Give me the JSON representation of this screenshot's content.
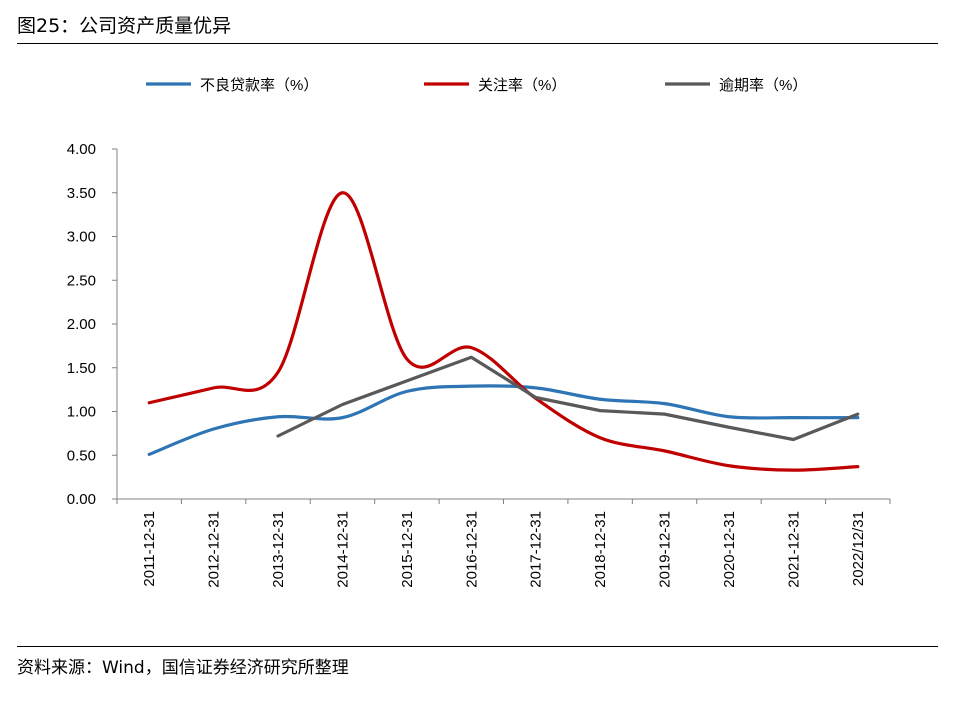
{
  "header": {
    "title": "图25：公司资产质量优异"
  },
  "footer": {
    "source": "资料来源：Wind，国信证券经济研究所整理"
  },
  "chart_data": {
    "type": "line",
    "title": "图25：公司资产质量优异",
    "xlabel": "",
    "ylabel": "",
    "categories": [
      "2011-12-31",
      "2012-12-31",
      "2013-12-31",
      "2014-12-31",
      "2015-12-31",
      "2016-12-31",
      "2017-12-31",
      "2018-12-31",
      "2019-12-31",
      "2020-12-31",
      "2021-12-31",
      "2022/12/31"
    ],
    "y_ticks": [
      "0.00",
      "0.50",
      "1.00",
      "1.50",
      "2.00",
      "2.50",
      "3.00",
      "3.50",
      "4.00"
    ],
    "ylim": [
      0,
      4
    ],
    "grid": false,
    "legend_position": "top",
    "series": [
      {
        "name": "不良贷款率（%）",
        "color": "#2E75B6",
        "values": [
          0.51,
          0.8,
          0.94,
          0.93,
          1.23,
          1.29,
          1.27,
          1.14,
          1.09,
          0.94,
          0.93,
          0.93
        ]
      },
      {
        "name": "关注率（%）",
        "color": "#C00000",
        "values": [
          1.1,
          1.27,
          1.45,
          3.5,
          1.6,
          1.73,
          1.15,
          0.7,
          0.55,
          0.38,
          0.33,
          0.37
        ]
      },
      {
        "name": "逾期率（%）",
        "color": "#595959",
        "values": [
          null,
          null,
          0.72,
          1.08,
          1.35,
          1.62,
          1.16,
          1.01,
          0.97,
          0.82,
          0.68,
          0.97
        ]
      }
    ]
  }
}
